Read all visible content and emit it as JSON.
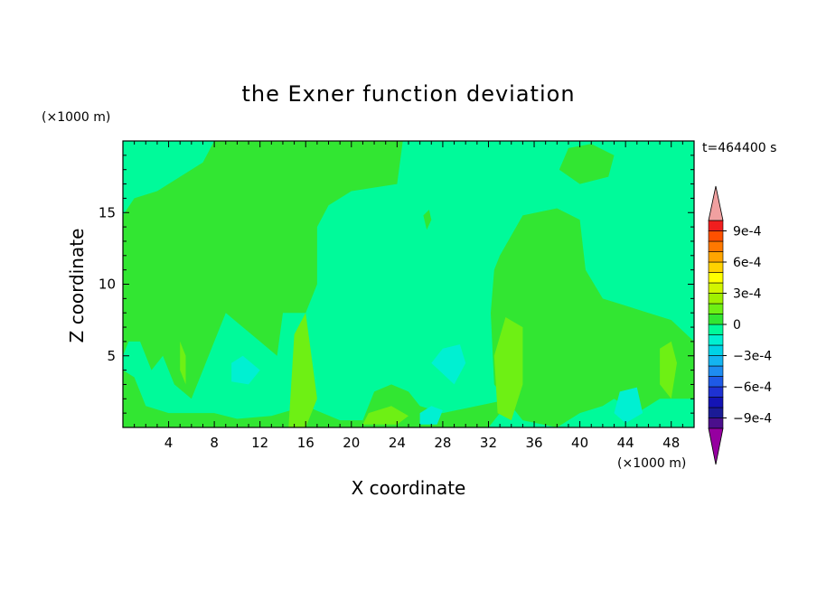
{
  "chart_data": {
    "type": "heatmap",
    "title": "the Exner function deviation",
    "xlabel": "X coordinate",
    "ylabel": "Z coordinate",
    "x_unit": "(×1000 m)",
    "y_unit": "(×1000 m)",
    "time_label": "t=464400 s",
    "xlim": [
      0,
      50
    ],
    "ylim": [
      0,
      20
    ],
    "x_ticks": [
      4,
      8,
      12,
      16,
      20,
      24,
      28,
      32,
      36,
      40,
      44,
      48
    ],
    "y_ticks": [
      5,
      10,
      15
    ],
    "colorbar": {
      "levels": [
        -0.001,
        -0.0009,
        -0.0008,
        -0.0007,
        -0.0006,
        -0.0005,
        -0.0004,
        -0.0003,
        -0.0002,
        -0.0001,
        0,
        0.0001,
        0.0002,
        0.0003,
        0.0004,
        0.0005,
        0.0006,
        0.0007,
        0.0008,
        0.0009,
        0.001
      ],
      "tick_labels": [
        {
          "value": 0.0009,
          "label": "9e-4"
        },
        {
          "value": 0.0006,
          "label": "6e-4"
        },
        {
          "value": 0.0003,
          "label": "3e-4"
        },
        {
          "value": 0,
          "label": "0"
        },
        {
          "value": -0.0003,
          "label": "−3e-4"
        },
        {
          "value": -0.0006,
          "label": "−6e-4"
        },
        {
          "value": -0.0009,
          "label": "−9e-4"
        }
      ],
      "colors": [
        "#4b0f8c",
        "#1b1b96",
        "#1414b4",
        "#1e32d2",
        "#1e5ae6",
        "#1e8cf0",
        "#14b4f0",
        "#00d2e6",
        "#00f0d2",
        "#00fa9a",
        "#32e632",
        "#6ef014",
        "#a0f000",
        "#d2f500",
        "#ffff00",
        "#ffd200",
        "#ffa500",
        "#ff7800",
        "#ff5000",
        "#f01e1e"
      ],
      "over_color": "#f0a0a0",
      "under_color": "#9600a0"
    },
    "background_value": -5e-05,
    "regions": [
      {
        "value": 5e-05,
        "points": [
          [
            0,
            14.8
          ],
          [
            1,
            16
          ],
          [
            3,
            16.5
          ],
          [
            5,
            17.5
          ],
          [
            7,
            18.5
          ],
          [
            8,
            20
          ],
          [
            24.5,
            20
          ],
          [
            24,
            17
          ],
          [
            20,
            16.5
          ],
          [
            18,
            15.5
          ],
          [
            17,
            14
          ],
          [
            17,
            10
          ],
          [
            16,
            8
          ],
          [
            14,
            8
          ],
          [
            13.5,
            5
          ],
          [
            12,
            6
          ],
          [
            9,
            8
          ],
          [
            8,
            6
          ],
          [
            7,
            4
          ],
          [
            6,
            2
          ],
          [
            4.5,
            3
          ],
          [
            3.5,
            5
          ],
          [
            2.5,
            4
          ],
          [
            1.5,
            6
          ],
          [
            0.5,
            6
          ],
          [
            0,
            5
          ]
        ]
      },
      {
        "value": 5e-05,
        "points": [
          [
            33,
            12
          ],
          [
            35,
            14.8
          ],
          [
            38,
            15.3
          ],
          [
            40,
            14.5
          ],
          [
            40.5,
            11
          ],
          [
            42,
            9
          ],
          [
            44,
            8.5
          ],
          [
            46,
            8
          ],
          [
            48,
            7.5
          ],
          [
            50,
            6
          ],
          [
            50,
            2
          ],
          [
            47,
            2
          ],
          [
            45,
            1
          ],
          [
            43,
            2
          ],
          [
            42,
            1.5
          ],
          [
            40,
            1
          ],
          [
            38,
            0
          ],
          [
            35,
            0.5
          ],
          [
            32.5,
            3
          ],
          [
            32.2,
            8
          ],
          [
            32.5,
            11
          ]
        ]
      },
      {
        "value": 5e-05,
        "points": [
          [
            38.2,
            18
          ],
          [
            39,
            19.5
          ],
          [
            41,
            19.8
          ],
          [
            43,
            19
          ],
          [
            42.5,
            17.5
          ],
          [
            40,
            17
          ]
        ]
      },
      {
        "value": 5e-05,
        "points": [
          [
            26.3,
            14.8
          ],
          [
            26.8,
            15.2
          ],
          [
            27,
            14.5
          ],
          [
            26.6,
            13.8
          ]
        ]
      },
      {
        "value": 5e-05,
        "points": [
          [
            0,
            0
          ],
          [
            0,
            4
          ],
          [
            1,
            3.5
          ],
          [
            2,
            1.5
          ],
          [
            4,
            1
          ],
          [
            8,
            1
          ],
          [
            10,
            0.6
          ],
          [
            13,
            0.8
          ],
          [
            16,
            1.5
          ],
          [
            19,
            0.5
          ],
          [
            21,
            0.5
          ],
          [
            22,
            2.5
          ],
          [
            23.5,
            3
          ],
          [
            25,
            2.5
          ],
          [
            26,
            1.5
          ],
          [
            28,
            1
          ],
          [
            31,
            1.5
          ],
          [
            34,
            2
          ],
          [
            32,
            0
          ]
        ]
      },
      {
        "value": 0.00015,
        "points": [
          [
            15,
            6.5
          ],
          [
            16,
            8
          ],
          [
            16.5,
            5
          ],
          [
            17,
            2
          ],
          [
            16,
            0
          ],
          [
            14.5,
            0
          ]
        ]
      },
      {
        "value": 0.00015,
        "points": [
          [
            32.5,
            5
          ],
          [
            33.5,
            7.7
          ],
          [
            35,
            7
          ],
          [
            35,
            3
          ],
          [
            34,
            0.5
          ],
          [
            32.8,
            1
          ]
        ]
      },
      {
        "value": 0.00015,
        "points": [
          [
            5,
            6
          ],
          [
            5.5,
            5
          ],
          [
            5.5,
            3
          ],
          [
            5,
            4
          ]
        ]
      },
      {
        "value": 0.00015,
        "points": [
          [
            47,
            5.5
          ],
          [
            48,
            6
          ],
          [
            48.5,
            4.5
          ],
          [
            48,
            2
          ],
          [
            47,
            3
          ]
        ]
      },
      {
        "value": 0.00015,
        "points": [
          [
            21,
            0.2
          ],
          [
            24,
            0.2
          ],
          [
            25,
            0.8
          ],
          [
            23.5,
            1.5
          ],
          [
            21.5,
            1
          ]
        ]
      },
      {
        "value": -0.00015,
        "points": [
          [
            9.5,
            4.5
          ],
          [
            10.5,
            5
          ],
          [
            12,
            4
          ],
          [
            11,
            3
          ],
          [
            9.5,
            3.2
          ]
        ]
      },
      {
        "value": -0.00015,
        "points": [
          [
            27,
            4.5
          ],
          [
            28,
            5.5
          ],
          [
            29.5,
            5.8
          ],
          [
            30,
            4.5
          ],
          [
            29,
            3
          ]
        ]
      },
      {
        "value": -0.00015,
        "points": [
          [
            43.5,
            2.5
          ],
          [
            45,
            2.8
          ],
          [
            45.5,
            1
          ],
          [
            44,
            0.3
          ],
          [
            43,
            1
          ]
        ]
      },
      {
        "value": -0.00015,
        "points": [
          [
            26,
            1
          ],
          [
            27,
            1.5
          ],
          [
            28,
            1.2
          ],
          [
            27.5,
            0.2
          ],
          [
            26,
            0.2
          ]
        ]
      }
    ]
  }
}
